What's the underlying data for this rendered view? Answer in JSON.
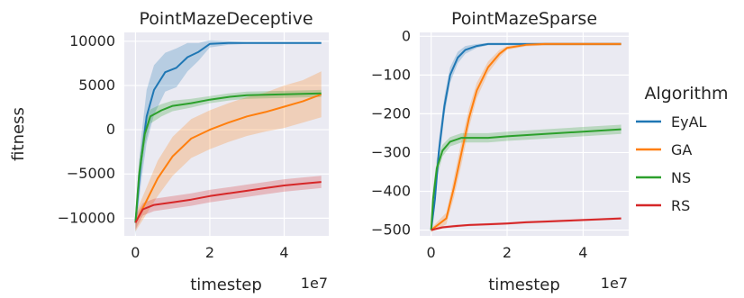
{
  "chart_data": [
    {
      "type": "line",
      "title": "PointMazeDeceptive",
      "xlabel": "timestep",
      "ylabel": "fitness",
      "x_offset_label": "1e7",
      "xlim": [
        -0.3,
        5.2
      ],
      "ylim": [
        -12000,
        11000
      ],
      "xticks": [
        0,
        2,
        4
      ],
      "xtick_labels": [
        "0",
        "2",
        "4"
      ],
      "yticks": [
        10000,
        5000,
        0,
        -5000,
        -10000
      ],
      "ytick_labels": [
        "10000",
        "5000",
        "0",
        "−5000",
        "−10000"
      ],
      "grid": true,
      "series": [
        {
          "name": "EyAL",
          "color": "#1f77b4",
          "x": [
            0,
            0.15,
            0.3,
            0.5,
            0.8,
            1.1,
            1.4,
            1.7,
            2.0,
            2.5,
            3,
            4,
            5
          ],
          "y": [
            -10500,
            -3500,
            1500,
            4500,
            6500,
            7000,
            8200,
            8800,
            9700,
            9800,
            9800,
            9800,
            9800
          ],
          "band": [
            1500,
            2500,
            3000,
            2800,
            2200,
            2200,
            1600,
            1000,
            400,
            200,
            100,
            100,
            100
          ]
        },
        {
          "name": "GA",
          "color": "#ff7f0e",
          "x": [
            0,
            0.3,
            0.6,
            1.0,
            1.5,
            2.0,
            2.5,
            3.0,
            3.5,
            4.0,
            4.5,
            5.0
          ],
          "y": [
            -10500,
            -8000,
            -5500,
            -3000,
            -1000,
            0,
            800,
            1500,
            2000,
            2600,
            3200,
            4000
          ],
          "band": [
            1000,
            1500,
            2000,
            2200,
            2200,
            2200,
            2200,
            2200,
            2200,
            2400,
            2400,
            2600
          ]
        },
        {
          "name": "NS",
          "color": "#2ca02c",
          "x": [
            0,
            0.1,
            0.25,
            0.4,
            0.7,
            1.0,
            1.5,
            2.0,
            2.5,
            3.0,
            4.0,
            5.0
          ],
          "y": [
            -10500,
            -5000,
            -500,
            1500,
            2200,
            2700,
            3000,
            3400,
            3700,
            3900,
            4000,
            4100
          ],
          "band": [
            1000,
            1500,
            1300,
            800,
            700,
            600,
            500,
            400,
            400,
            400,
            400,
            400
          ]
        },
        {
          "name": "RS",
          "color": "#d62728",
          "x": [
            0,
            0.2,
            0.5,
            1.0,
            1.5,
            2.0,
            2.5,
            3.0,
            3.5,
            4.0,
            4.5,
            5.0
          ],
          "y": [
            -10500,
            -9000,
            -8500,
            -8200,
            -7900,
            -7500,
            -7200,
            -6900,
            -6600,
            -6300,
            -6100,
            -5900
          ],
          "band": [
            800,
            700,
            700,
            700,
            700,
            700,
            700,
            700,
            700,
            700,
            700,
            700
          ]
        }
      ]
    },
    {
      "type": "line",
      "title": "PointMazeSparse",
      "xlabel": "timestep",
      "ylabel": "",
      "x_offset_label": "1e7",
      "xlim": [
        -0.3,
        5.2
      ],
      "ylim": [
        -515,
        10
      ],
      "xticks": [
        0,
        2,
        4
      ],
      "xtick_labels": [
        "0",
        "2",
        "4"
      ],
      "yticks": [
        0,
        -100,
        -200,
        -300,
        -400,
        -500
      ],
      "ytick_labels": [
        "0",
        "−100",
        "−200",
        "−300",
        "−400",
        "−500"
      ],
      "grid": true,
      "series": [
        {
          "name": "EyAL",
          "color": "#1f77b4",
          "x": [
            0,
            0.1,
            0.2,
            0.35,
            0.5,
            0.7,
            0.9,
            1.2,
            1.5,
            2.0,
            3.0,
            4.0,
            5.0
          ],
          "y": [
            -500,
            -420,
            -300,
            -180,
            -100,
            -55,
            -35,
            -25,
            -20,
            -20,
            -20,
            -20,
            -20
          ],
          "band": [
            5,
            20,
            30,
            25,
            20,
            15,
            10,
            5,
            3,
            3,
            3,
            3,
            3
          ]
        },
        {
          "name": "GA",
          "color": "#ff7f0e",
          "x": [
            0,
            0.4,
            0.6,
            0.8,
            1.0,
            1.2,
            1.5,
            1.8,
            2.0,
            2.5,
            3.0,
            4.0,
            5.0
          ],
          "y": [
            -500,
            -470,
            -390,
            -300,
            -210,
            -140,
            -80,
            -45,
            -30,
            -22,
            -20,
            -20,
            -20
          ],
          "band": [
            5,
            15,
            25,
            30,
            25,
            20,
            15,
            10,
            5,
            4,
            4,
            4,
            4
          ]
        },
        {
          "name": "NS",
          "color": "#2ca02c",
          "x": [
            0,
            0.05,
            0.15,
            0.3,
            0.5,
            0.8,
            1.0,
            1.5,
            2.0,
            3.0,
            4.0,
            5.0
          ],
          "y": [
            -500,
            -420,
            -340,
            -295,
            -272,
            -262,
            -262,
            -262,
            -258,
            -252,
            -246,
            -240
          ],
          "band": [
            10,
            25,
            25,
            15,
            12,
            12,
            12,
            12,
            12,
            12,
            12,
            12
          ]
        },
        {
          "name": "RS",
          "color": "#d62728",
          "x": [
            0,
            0.3,
            0.6,
            1.0,
            1.5,
            2.0,
            2.5,
            3.0,
            3.5,
            4.0,
            4.5,
            5.0
          ],
          "y": [
            -500,
            -493,
            -490,
            -487,
            -485,
            -483,
            -480,
            -478,
            -476,
            -474,
            -472,
            -470
          ],
          "band": [
            3,
            3,
            3,
            3,
            3,
            3,
            3,
            3,
            3,
            3,
            3,
            3
          ]
        }
      ]
    }
  ],
  "legend": {
    "title": "Algorithm",
    "placement": "right",
    "items": [
      {
        "label": "EyAL",
        "color": "#1f77b4"
      },
      {
        "label": "GA",
        "color": "#ff7f0e"
      },
      {
        "label": "NS",
        "color": "#2ca02c"
      },
      {
        "label": "RS",
        "color": "#d62728"
      }
    ]
  }
}
